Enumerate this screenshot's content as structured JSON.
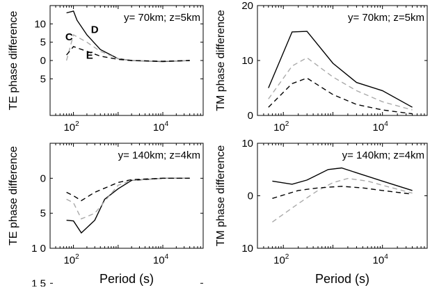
{
  "chart_data": [
    {
      "type": "line",
      "id": "p1",
      "xscale": "log",
      "xlim": [
        30,
        80000
      ],
      "ylim": [
        -15,
        15
      ],
      "yticks": [
        {
          "v": 10,
          "label": "10"
        },
        {
          "v": 5,
          "label": "5"
        },
        {
          "v": 0,
          "label": "0"
        },
        {
          "v": -5,
          "label": "5"
        }
      ],
      "xticks": [
        {
          "v": 100,
          "base": "10",
          "exp": "2"
        },
        {
          "v": 10000,
          "base": "10",
          "exp": "4"
        }
      ],
      "ylabel": "TE phase difference",
      "xlabel": "",
      "annotation": "y=  70km; z=5km",
      "series": [
        {
          "name": "D",
          "style": "solid",
          "color": "#000000",
          "x": [
            70,
            100,
            120,
            200,
            400,
            1000,
            2000,
            10000,
            40000
          ],
          "y": [
            13,
            13.5,
            11,
            7,
            3,
            0.5,
            0,
            -0.3,
            0
          ]
        },
        {
          "name": "C",
          "style": "dashed",
          "color": "#aaaaaa",
          "x": [
            70,
            100,
            200,
            400,
            1000,
            2000,
            10000,
            40000
          ],
          "y": [
            0,
            7,
            5,
            2.5,
            0.5,
            0,
            -0.2,
            0
          ]
        },
        {
          "name": "E",
          "style": "dashed",
          "color": "#000000",
          "x": [
            70,
            100,
            200,
            400,
            1000,
            2000,
            10000,
            40000
          ],
          "y": [
            1.5,
            3.8,
            2.5,
            1.2,
            0.3,
            0,
            -0.2,
            0
          ]
        }
      ],
      "curve_labels": [
        {
          "text": "D",
          "x": 300,
          "y": 7.5
        },
        {
          "text": "C",
          "x": 80,
          "y": 5.5
        },
        {
          "text": "E",
          "x": 230,
          "y": 0.5
        }
      ]
    },
    {
      "type": "line",
      "id": "p2",
      "xscale": "log",
      "xlim": [
        30,
        80000
      ],
      "ylim": [
        0,
        20
      ],
      "yticks": [
        {
          "v": 20,
          "label": "20"
        },
        {
          "v": 10,
          "label": "10"
        },
        {
          "v": 0,
          "label": "0"
        }
      ],
      "xticks": [
        {
          "v": 100,
          "base": "10",
          "exp": "2"
        },
        {
          "v": 10000,
          "base": "10",
          "exp": "4"
        }
      ],
      "ylabel": "TM phase difference",
      "xlabel": "",
      "annotation": "y=  70km; z=5km",
      "series": [
        {
          "style": "solid",
          "color": "#000000",
          "x": [
            50,
            150,
            300,
            1000,
            3000,
            10000,
            40000
          ],
          "y": [
            5,
            15.2,
            15.3,
            9.5,
            6,
            4.5,
            1.5
          ]
        },
        {
          "style": "dashed",
          "color": "#aaaaaa",
          "x": [
            50,
            150,
            300,
            1000,
            3000,
            10000,
            40000
          ],
          "y": [
            3,
            9,
            10.5,
            7,
            4.5,
            2.5,
            1
          ]
        },
        {
          "style": "dashed",
          "color": "#000000",
          "x": [
            50,
            150,
            300,
            1000,
            3000,
            10000,
            40000
          ],
          "y": [
            1.5,
            5.8,
            6.8,
            3.8,
            2,
            1,
            0.3
          ]
        }
      ]
    },
    {
      "type": "line",
      "id": "p3",
      "xscale": "log",
      "xlim": [
        30,
        80000
      ],
      "ylim": [
        -10,
        5
      ],
      "yticks": [
        {
          "v": 0,
          "label": "0"
        },
        {
          "v": -5,
          "label": "5"
        },
        {
          "v": -10,
          "label": "1 0"
        },
        {
          "v": -15,
          "label": "1 5"
        }
      ],
      "yticks_note": "tick labels as printed",
      "xticks": [
        {
          "v": 100,
          "base": "10",
          "exp": "2"
        },
        {
          "v": 10000,
          "base": "10",
          "exp": "4"
        }
      ],
      "ylabel": "TE phase difference",
      "xlabel": "Period (s)",
      "annotation": "y=  140km; z=4km",
      "series": [
        {
          "style": "solid",
          "color": "#000000",
          "x": [
            70,
            100,
            150,
            300,
            500,
            1000,
            2000,
            10000,
            40000
          ],
          "y": [
            -6,
            -6.1,
            -7.8,
            -6,
            -3,
            -1.5,
            -0.3,
            0,
            0
          ]
        },
        {
          "style": "dashed",
          "color": "#aaaaaa",
          "x": [
            70,
            100,
            150,
            300,
            1000,
            2000,
            10000,
            40000
          ],
          "y": [
            -3,
            -3.5,
            -5.8,
            -5,
            -1,
            -0.3,
            0,
            0
          ]
        },
        {
          "style": "dashed",
          "color": "#000000",
          "x": [
            70,
            100,
            150,
            300,
            1000,
            2000,
            10000,
            40000
          ],
          "y": [
            -2,
            -2.5,
            -3.2,
            -2,
            -0.6,
            -0.2,
            0,
            0
          ]
        }
      ]
    },
    {
      "type": "line",
      "id": "p4",
      "xscale": "log",
      "xlim": [
        30,
        80000
      ],
      "ylim": [
        -10,
        10
      ],
      "yticks": [
        {
          "v": 10,
          "label": "10"
        },
        {
          "v": 0,
          "label": "0"
        },
        {
          "v": -10,
          "label": "10"
        }
      ],
      "xticks": [
        {
          "v": 100,
          "base": "10",
          "exp": "2"
        },
        {
          "v": 10000,
          "base": "10",
          "exp": "4"
        }
      ],
      "ylabel": "TM phase difference",
      "xlabel": "Period (s)",
      "annotation": "y=  140km; z=4km",
      "series": [
        {
          "style": "solid",
          "color": "#000000",
          "x": [
            60,
            150,
            300,
            800,
            1500,
            4000,
            10000,
            40000
          ],
          "y": [
            2.8,
            2.2,
            3,
            5,
            5.3,
            4,
            2.8,
            1
          ]
        },
        {
          "style": "dashed",
          "color": "#aaaaaa",
          "x": [
            60,
            200,
            500,
            1000,
            2000,
            5000,
            10000,
            40000
          ],
          "y": [
            -5,
            -1.5,
            1,
            2.5,
            3.3,
            2.8,
            2,
            0.5
          ]
        },
        {
          "style": "dashed",
          "color": "#000000",
          "x": [
            60,
            200,
            500,
            1500,
            4000,
            10000,
            40000
          ],
          "y": [
            -0.5,
            1,
            1.5,
            1.8,
            1.5,
            1,
            0.3
          ]
        }
      ]
    }
  ]
}
